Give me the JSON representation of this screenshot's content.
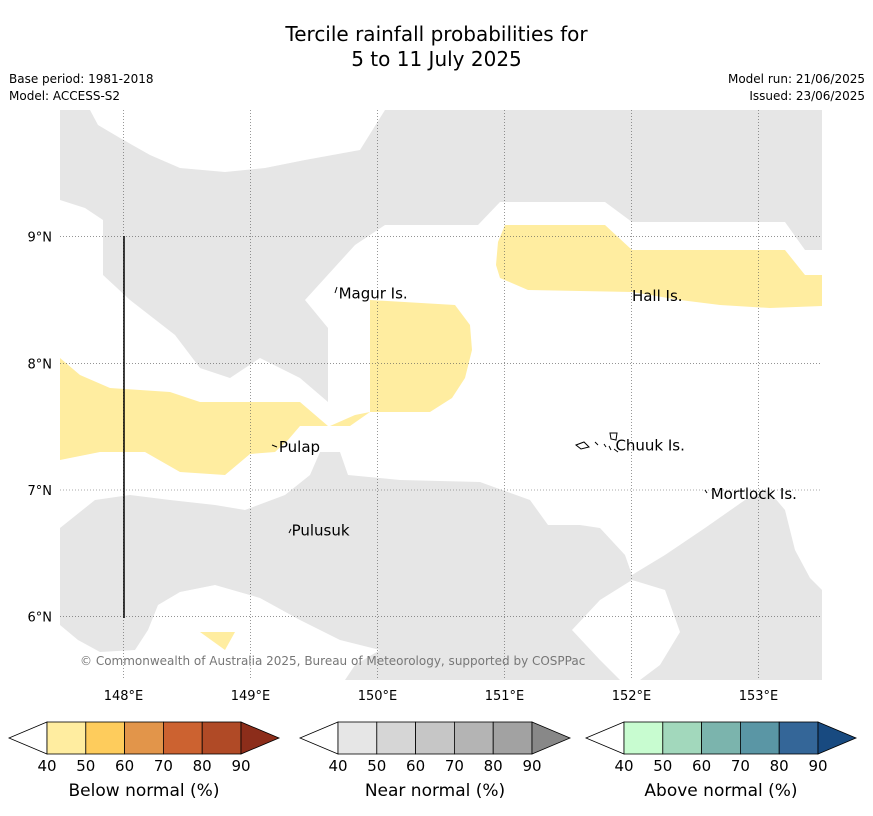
{
  "title_line1": "Tercile rainfall probabilities for",
  "title_line2": "5 to 11 July 2025",
  "meta_left": [
    "Base period: 1981-2018",
    "Model: ACCESS-S2"
  ],
  "meta_right": [
    "Model run: 21/06/2025",
    "Issued: 23/06/2025"
  ],
  "map": {
    "lon_range": [
      147.5,
      153.5
    ],
    "lat_range": [
      5.5,
      10.0
    ],
    "lon_ticks": [
      {
        "value": 148,
        "label": "148°E"
      },
      {
        "value": 149,
        "label": "149°E"
      },
      {
        "value": 150,
        "label": "150°E"
      },
      {
        "value": 151,
        "label": "151°E"
      },
      {
        "value": 152,
        "label": "152°E"
      },
      {
        "value": 153,
        "label": "153°E"
      }
    ],
    "lat_ticks": [
      {
        "value": 6,
        "label": "6°N"
      },
      {
        "value": 7,
        "label": "7°N"
      },
      {
        "value": 8,
        "label": "8°N"
      },
      {
        "value": 9,
        "label": "9°N"
      }
    ],
    "grid": true,
    "colors": {
      "near_normal_40_50": "#e6e6e6",
      "below_normal_40_50": "#ffeda0",
      "coastline": "#000000"
    },
    "islands": [
      {
        "name": "Magur Is.",
        "lon": 149.67,
        "lat": 8.55
      },
      {
        "name": "Hall Is.",
        "lon": 151.98,
        "lat": 8.53
      },
      {
        "name": "Pulap",
        "lon": 149.2,
        "lat": 7.34
      },
      {
        "name": "Chuuk Is.",
        "lon": 151.85,
        "lat": 7.35
      },
      {
        "name": "Mortlock Is.",
        "lon": 152.6,
        "lat": 6.97
      },
      {
        "name": "Pulusuk",
        "lon": 149.3,
        "lat": 6.68
      }
    ],
    "copyright": "© Commonwealth of Australia 2025, Bureau of Meteorology, supported by COSPPac"
  },
  "colorbars": [
    {
      "label": "Below normal (%)",
      "ticks": [
        "40",
        "50",
        "60",
        "70",
        "80",
        "90"
      ],
      "colors": [
        "#ffffff",
        "#ffeda0",
        "#fecc5c",
        "#e2954a",
        "#cc6230",
        "#b04a26",
        "#8c2d1a"
      ]
    },
    {
      "label": "Near normal (%)",
      "ticks": [
        "40",
        "50",
        "60",
        "70",
        "80",
        "90"
      ],
      "colors": [
        "#ffffff",
        "#e6e6e6",
        "#d6d6d6",
        "#c6c6c6",
        "#b4b4b4",
        "#a2a2a2",
        "#888888"
      ]
    },
    {
      "label": "Above normal (%)",
      "ticks": [
        "40",
        "50",
        "60",
        "70",
        "80",
        "90"
      ],
      "colors": [
        "#ffffff",
        "#c8fcd0",
        "#a2d8bc",
        "#7bb4ad",
        "#5a96a5",
        "#346698",
        "#184a80"
      ]
    }
  ]
}
